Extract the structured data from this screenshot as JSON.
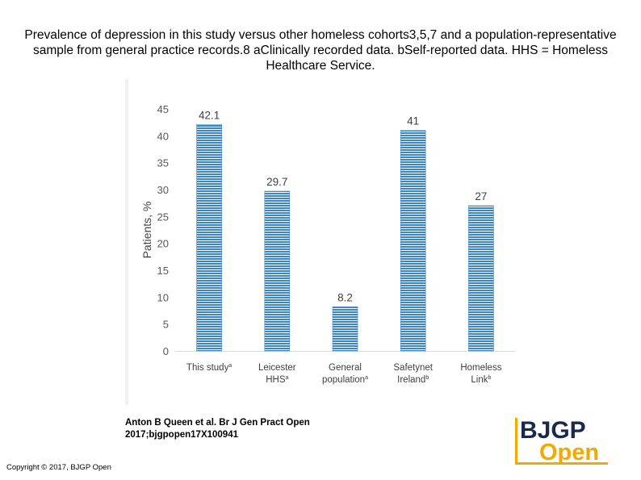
{
  "title": "Prevalence of depression in this study versus other homeless cohorts3,5,7 and a population-representative sample from general practice records.8 aClinically recorded data. bSelf-reported data. HHS = Homeless Healthcare Service.",
  "citation": {
    "line1": "Anton B Queen et al. Br J Gen Pract Open",
    "line2": "2017;bjgpopen17X100941"
  },
  "copyright": "Copyright © 2017, BJGP Open",
  "logo": {
    "top": "BJGP",
    "bottom": "Open"
  },
  "colors": {
    "bar": "#5b9bd5",
    "bar_dark": "#2e75b6",
    "logo_text": "#1a2a4a",
    "logo_accent": "#f2a900"
  },
  "chart_data": {
    "type": "bar",
    "categories": [
      [
        "This study",
        "a"
      ],
      [
        "Leicester",
        "HHS",
        "a"
      ],
      [
        "General",
        "population",
        "a"
      ],
      [
        "Safetynet",
        "Ireland",
        "b"
      ],
      [
        "Homeless",
        "Link",
        "b"
      ]
    ],
    "values": [
      42.1,
      29.7,
      8.2,
      41,
      27
    ],
    "value_labels": [
      "42.1",
      "29.7",
      "8.2",
      "41",
      "27"
    ],
    "ylabel": "Patients, %",
    "xlabel": "",
    "ylim": [
      0,
      45
    ],
    "yticks": [
      0,
      5,
      10,
      15,
      20,
      25,
      30,
      35,
      40,
      45
    ],
    "grid": false
  }
}
